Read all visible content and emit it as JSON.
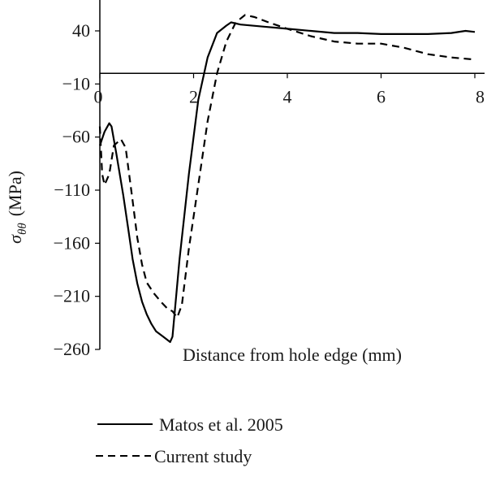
{
  "chart_data": {
    "type": "line",
    "xlabel": "Distance from hole edge (mm)",
    "ylabel": "σθθ (MPa)",
    "ylabel_symbol": "σ",
    "ylabel_subscript": "θθ",
    "ylabel_unit": "(MPa)",
    "xlim": [
      0,
      8
    ],
    "ylim": [
      -260,
      60
    ],
    "x_ticks": [
      "0",
      "2",
      "4",
      "6",
      "8"
    ],
    "y_ticks": [
      "40",
      "−10",
      "−60",
      "−110",
      "−160",
      "−210",
      "−260"
    ],
    "x_tick_values": [
      0,
      2,
      4,
      6,
      8
    ],
    "y_tick_values": [
      40,
      -10,
      -60,
      -110,
      -160,
      -210,
      -260
    ],
    "zero_line": 0,
    "grid": false,
    "legend_position": "bottom",
    "series": [
      {
        "name": "Matos et al. 2005",
        "style": "solid",
        "color": "#000000",
        "points": [
          [
            0.0,
            -68
          ],
          [
            0.1,
            -55
          ],
          [
            0.2,
            -47
          ],
          [
            0.25,
            -50
          ],
          [
            0.35,
            -75
          ],
          [
            0.5,
            -115
          ],
          [
            0.6,
            -145
          ],
          [
            0.7,
            -175
          ],
          [
            0.8,
            -198
          ],
          [
            0.9,
            -215
          ],
          [
            1.0,
            -227
          ],
          [
            1.1,
            -236
          ],
          [
            1.2,
            -243
          ],
          [
            1.35,
            -248
          ],
          [
            1.5,
            -253
          ],
          [
            1.55,
            -248
          ],
          [
            1.7,
            -175
          ],
          [
            1.9,
            -95
          ],
          [
            2.1,
            -25
          ],
          [
            2.3,
            15
          ],
          [
            2.5,
            38
          ],
          [
            2.7,
            45
          ],
          [
            2.8,
            48
          ],
          [
            3.0,
            46
          ],
          [
            3.5,
            44
          ],
          [
            4.0,
            42
          ],
          [
            4.5,
            40
          ],
          [
            5.0,
            38
          ],
          [
            5.5,
            38
          ],
          [
            6.0,
            37
          ],
          [
            6.5,
            37
          ],
          [
            7.0,
            37
          ],
          [
            7.5,
            38
          ],
          [
            7.8,
            40
          ],
          [
            8.0,
            39
          ]
        ]
      },
      {
        "name": "Current study",
        "style": "dashed",
        "color": "#000000",
        "points": [
          [
            0.0,
            -50
          ],
          [
            0.05,
            -95
          ],
          [
            0.1,
            -105
          ],
          [
            0.2,
            -95
          ],
          [
            0.3,
            -68
          ],
          [
            0.45,
            -62
          ],
          [
            0.55,
            -70
          ],
          [
            0.7,
            -120
          ],
          [
            0.8,
            -155
          ],
          [
            0.9,
            -180
          ],
          [
            1.0,
            -197
          ],
          [
            1.15,
            -207
          ],
          [
            1.3,
            -215
          ],
          [
            1.45,
            -222
          ],
          [
            1.55,
            -224
          ],
          [
            1.65,
            -230
          ],
          [
            1.75,
            -218
          ],
          [
            1.9,
            -165
          ],
          [
            2.1,
            -105
          ],
          [
            2.3,
            -45
          ],
          [
            2.5,
            0
          ],
          [
            2.7,
            30
          ],
          [
            2.9,
            48
          ],
          [
            3.1,
            55
          ],
          [
            3.3,
            53
          ],
          [
            3.6,
            48
          ],
          [
            4.0,
            42
          ],
          [
            4.5,
            35
          ],
          [
            5.0,
            30
          ],
          [
            5.5,
            28
          ],
          [
            6.0,
            28
          ],
          [
            6.5,
            24
          ],
          [
            7.0,
            18
          ],
          [
            7.5,
            15
          ],
          [
            8.0,
            13
          ]
        ]
      }
    ]
  }
}
